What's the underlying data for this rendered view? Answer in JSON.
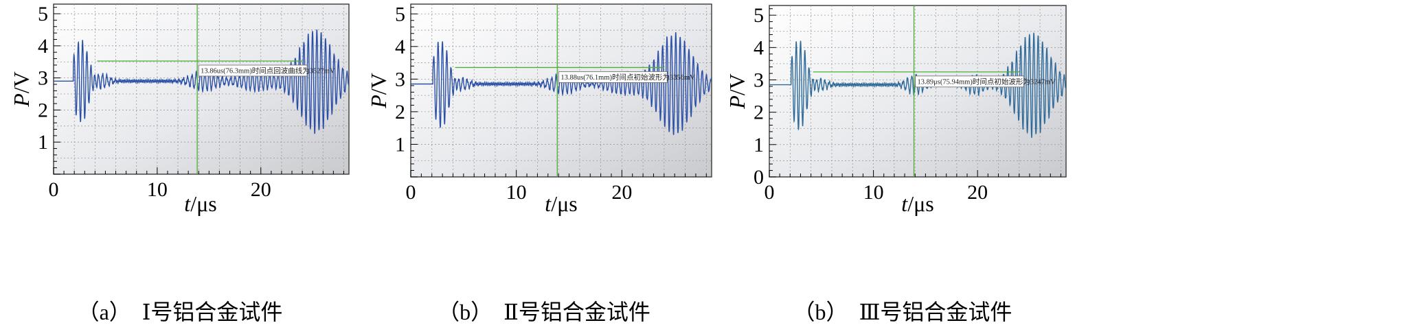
{
  "chart_data": [
    {
      "type": "line",
      "panel": "a",
      "caption_letter": "（a）",
      "caption_text": "Ⅰ号铝合金试件",
      "ylabel_var": "P",
      "ylabel_unit": "/V",
      "xlabel_var": "t",
      "xlabel_unit": "/μs",
      "xlim": [
        0,
        28.5
      ],
      "ylim": [
        0,
        5.3
      ],
      "xticks": [
        "0",
        "10",
        "20"
      ],
      "xtick_values": [
        0,
        10,
        20
      ],
      "yticks": [
        "1",
        "2",
        "3",
        "4",
        "5"
      ],
      "ytick_values": [
        1,
        2,
        3,
        4,
        5
      ],
      "grid": true,
      "baseline_v": 2.9,
      "cursor_x": 13.86,
      "cursor_level": 3.527,
      "cursor_hline_start": 4.2,
      "annotation": "13.86us(76.3mm)时间点回波曲线为3527mV",
      "signal": {
        "start": 1.9,
        "bursts": [
          {
            "center": 2.7,
            "amp": 1.35,
            "width": 0.75,
            "freq": 2.0
          },
          {
            "center": 4.2,
            "amp": 0.3,
            "width": 0.9,
            "freq": 2.0
          },
          {
            "center": 14.5,
            "amp": 0.3,
            "width": 1.2,
            "freq": 2.0
          },
          {
            "center": 19.5,
            "amp": 0.3,
            "width": 1.5,
            "freq": 2.0
          },
          {
            "center": 25.3,
            "amp": 1.6,
            "width": 1.6,
            "freq": 2.0
          }
        ]
      }
    },
    {
      "type": "line",
      "panel": "b",
      "caption_letter": "（b）",
      "caption_text": "Ⅱ号铝合金试件",
      "ylabel_var": "P",
      "ylabel_unit": "/V",
      "xlabel_var": "t",
      "xlabel_unit": "/μs",
      "xlim": [
        0,
        28.5
      ],
      "ylim": [
        0,
        5.3
      ],
      "xticks": [
        "0",
        "10",
        "20"
      ],
      "xtick_values": [
        0,
        10,
        20
      ],
      "yticks": [
        "1",
        "2",
        "3",
        "4",
        "5"
      ],
      "ytick_values": [
        1,
        2,
        3,
        4,
        5
      ],
      "grid": true,
      "baseline_v": 2.85,
      "cursor_x": 13.88,
      "cursor_level": 3.356,
      "cursor_hline_start": 4.2,
      "annotation": "13.88us(76.1mm)时间点初始波形为3356mV",
      "signal": {
        "start": 2.1,
        "bursts": [
          {
            "center": 2.9,
            "amp": 1.4,
            "width": 0.75,
            "freq": 2.0
          },
          {
            "center": 4.4,
            "amp": 0.25,
            "width": 0.9,
            "freq": 2.0
          },
          {
            "center": 14.5,
            "amp": 0.3,
            "width": 1.2,
            "freq": 2.0
          },
          {
            "center": 20.0,
            "amp": 0.3,
            "width": 1.5,
            "freq": 2.0
          },
          {
            "center": 25.0,
            "amp": 1.55,
            "width": 1.6,
            "freq": 2.0
          }
        ]
      }
    },
    {
      "type": "line",
      "panel": "c",
      "caption_letter": "（b）",
      "caption_text": "Ⅲ号铝合金试件",
      "ylabel_var": "P",
      "ylabel_unit": "/V",
      "xlabel_var": "t",
      "xlabel_unit": "/μs",
      "xlim": [
        0,
        28.5
      ],
      "ylim": [
        0,
        5.3
      ],
      "xticks": [
        "0",
        "10",
        "20"
      ],
      "xtick_values": [
        0,
        10,
        20
      ],
      "yticks": [
        "0",
        "1",
        "2",
        "3",
        "4",
        "5"
      ],
      "ytick_values": [
        0,
        1,
        2,
        3,
        4,
        5
      ],
      "grid": true,
      "baseline_v": 2.85,
      "cursor_x": 13.89,
      "cursor_level": 3.247,
      "cursor_hline_start": 4.2,
      "annotation": "13.89μs(75.94mm)时间点初始波形为3247mV",
      "signal": {
        "start": 2.1,
        "bursts": [
          {
            "center": 2.9,
            "amp": 1.45,
            "width": 0.75,
            "freq": 2.0
          },
          {
            "center": 4.4,
            "amp": 0.25,
            "width": 0.9,
            "freq": 2.0
          },
          {
            "center": 14.0,
            "amp": 0.3,
            "width": 0.8,
            "freq": 2.0
          },
          {
            "center": 19.8,
            "amp": 0.3,
            "width": 0.8,
            "freq": 2.0
          },
          {
            "center": 25.3,
            "amp": 1.6,
            "width": 1.6,
            "freq": 2.0
          }
        ]
      }
    }
  ],
  "colors": {
    "trace": "#2a4fa6",
    "trace_c": "#2d6a9a",
    "cursor": "#4caf35",
    "grid": "#9a9a9a",
    "axis": "#444444"
  }
}
